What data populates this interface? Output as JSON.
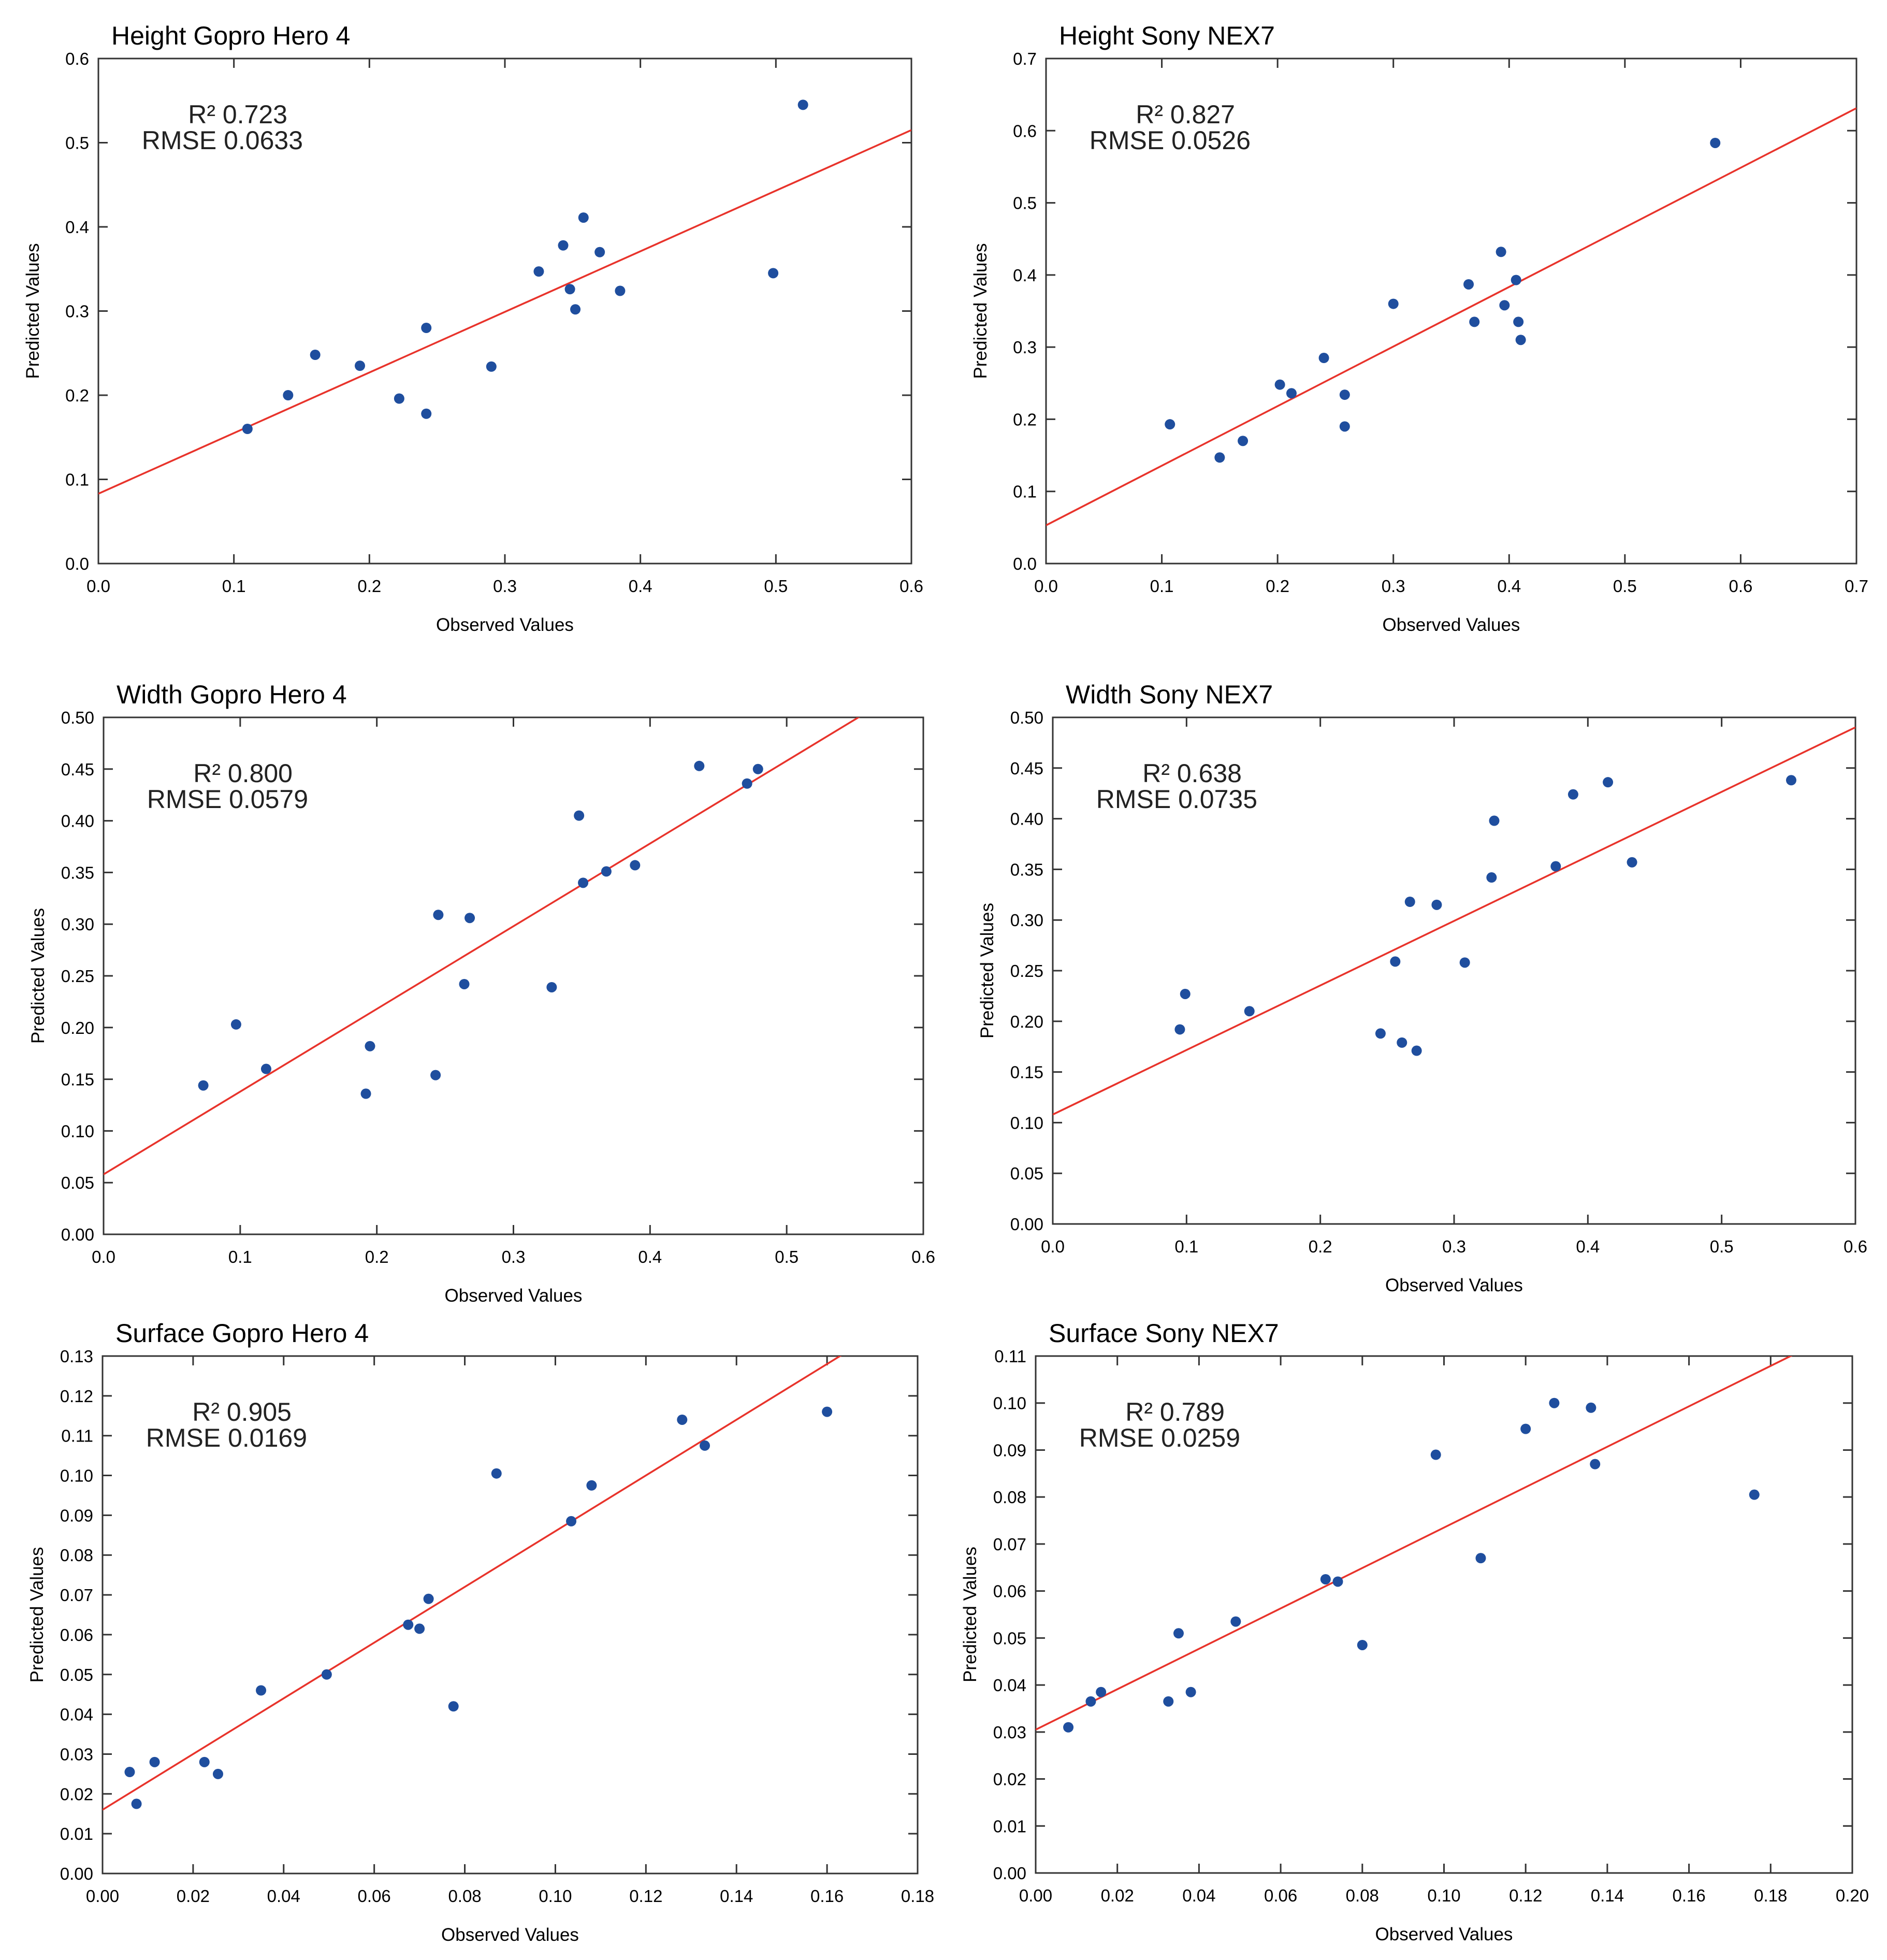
{
  "chart_data": [
    {
      "type": "scatter",
      "title": "Height Gopro Hero 4",
      "xlabel": "Observed Values",
      "ylabel": "Predicted Values",
      "xlim": [
        0,
        0.6
      ],
      "ylim": [
        0,
        0.6
      ],
      "xticks": [
        "0.0",
        "0.1",
        "0.2",
        "0.3",
        "0.4",
        "0.5",
        "0.6"
      ],
      "yticks": [
        "0.0",
        "0.1",
        "0.2",
        "0.3",
        "0.4",
        "0.5",
        "0.6"
      ],
      "stats": {
        "r2_label": "R² 0.723",
        "rmse_label": "RMSE 0.0633"
      },
      "fit_line": {
        "intercept": 0.083,
        "slope": 0.72
      },
      "points": [
        [
          0.11,
          0.16
        ],
        [
          0.14,
          0.2
        ],
        [
          0.16,
          0.248
        ],
        [
          0.193,
          0.235
        ],
        [
          0.222,
          0.196
        ],
        [
          0.242,
          0.28
        ],
        [
          0.242,
          0.178
        ],
        [
          0.29,
          0.234
        ],
        [
          0.325,
          0.347
        ],
        [
          0.343,
          0.378
        ],
        [
          0.348,
          0.326
        ],
        [
          0.352,
          0.302
        ],
        [
          0.358,
          0.411
        ],
        [
          0.37,
          0.37
        ],
        [
          0.385,
          0.324
        ],
        [
          0.498,
          0.345
        ],
        [
          0.52,
          0.545
        ]
      ]
    },
    {
      "type": "scatter",
      "title": "Height Sony NEX7",
      "xlabel": "Observed Values",
      "ylabel": "Predicted Values",
      "xlim": [
        0,
        0.7
      ],
      "ylim": [
        0,
        0.7
      ],
      "xticks": [
        "0.0",
        "0.1",
        "0.2",
        "0.3",
        "0.4",
        "0.5",
        "0.6",
        "0.7"
      ],
      "yticks": [
        "0.0",
        "0.1",
        "0.2",
        "0.3",
        "0.4",
        "0.5",
        "0.6",
        "0.7"
      ],
      "stats": {
        "r2_label": "R² 0.827",
        "rmse_label": "RMSE 0.0526"
      },
      "fit_line": {
        "intercept": 0.053,
        "slope": 0.826
      },
      "points": [
        [
          0.107,
          0.193
        ],
        [
          0.15,
          0.147
        ],
        [
          0.17,
          0.17
        ],
        [
          0.202,
          0.248
        ],
        [
          0.212,
          0.236
        ],
        [
          0.24,
          0.285
        ],
        [
          0.258,
          0.234
        ],
        [
          0.258,
          0.19
        ],
        [
          0.3,
          0.36
        ],
        [
          0.365,
          0.387
        ],
        [
          0.37,
          0.335
        ],
        [
          0.393,
          0.432
        ],
        [
          0.396,
          0.358
        ],
        [
          0.406,
          0.393
        ],
        [
          0.408,
          0.335
        ],
        [
          0.41,
          0.31
        ],
        [
          0.578,
          0.583
        ]
      ]
    },
    {
      "type": "scatter",
      "title": "Width Gopro Hero 4",
      "xlabel": "Observed Values",
      "ylabel": "Predicted Values",
      "xlim": [
        0,
        0.6
      ],
      "ylim": [
        0,
        0.5
      ],
      "xticks": [
        "0.0",
        "0.1",
        "0.2",
        "0.3",
        "0.4",
        "0.5",
        "0.6"
      ],
      "yticks": [
        "0.00",
        "0.05",
        "0.10",
        "0.15",
        "0.20",
        "0.25",
        "0.30",
        "0.35",
        "0.40",
        "0.45",
        "0.50"
      ],
      "stats": {
        "r2_label": "R² 0.800",
        "rmse_label": "RMSE 0.0579"
      },
      "fit_line": {
        "intercept": 0.058,
        "slope": 0.8
      },
      "points": [
        [
          0.073,
          0.144
        ],
        [
          0.097,
          0.203
        ],
        [
          0.119,
          0.16
        ],
        [
          0.192,
          0.136
        ],
        [
          0.195,
          0.182
        ],
        [
          0.243,
          0.154
        ],
        [
          0.245,
          0.309
        ],
        [
          0.264,
          0.242
        ],
        [
          0.268,
          0.306
        ],
        [
          0.328,
          0.239
        ],
        [
          0.348,
          0.405
        ],
        [
          0.351,
          0.34
        ],
        [
          0.368,
          0.351
        ],
        [
          0.389,
          0.357
        ],
        [
          0.436,
          0.453
        ],
        [
          0.471,
          0.436
        ],
        [
          0.479,
          0.45
        ]
      ]
    },
    {
      "type": "scatter",
      "title": "Width Sony NEX7",
      "xlabel": "Observed Values",
      "ylabel": "Predicted Values",
      "xlim": [
        0,
        0.6
      ],
      "ylim": [
        0,
        0.5
      ],
      "xticks": [
        "0.0",
        "0.1",
        "0.2",
        "0.3",
        "0.4",
        "0.5",
        "0.6"
      ],
      "yticks": [
        "0.00",
        "0.05",
        "0.10",
        "0.15",
        "0.20",
        "0.25",
        "0.30",
        "0.35",
        "0.40",
        "0.45",
        "0.50"
      ],
      "stats": {
        "r2_label": "R² 0.638",
        "rmse_label": "RMSE 0.0735"
      },
      "fit_line": {
        "intercept": 0.108,
        "slope": 0.637
      },
      "points": [
        [
          0.095,
          0.192
        ],
        [
          0.099,
          0.227
        ],
        [
          0.147,
          0.21
        ],
        [
          0.245,
          0.188
        ],
        [
          0.256,
          0.259
        ],
        [
          0.261,
          0.179
        ],
        [
          0.267,
          0.318
        ],
        [
          0.272,
          0.171
        ],
        [
          0.287,
          0.315
        ],
        [
          0.308,
          0.258
        ],
        [
          0.328,
          0.342
        ],
        [
          0.33,
          0.398
        ],
        [
          0.376,
          0.353
        ],
        [
          0.389,
          0.424
        ],
        [
          0.415,
          0.436
        ],
        [
          0.433,
          0.357
        ],
        [
          0.552,
          0.438
        ]
      ]
    },
    {
      "type": "scatter",
      "title": "Surface Gopro Hero 4",
      "xlabel": "Observed Values",
      "ylabel": "Predicted Values",
      "xlim": [
        0,
        0.18
      ],
      "ylim": [
        0,
        0.13
      ],
      "xticks": [
        "0.00",
        "0.02",
        "0.04",
        "0.06",
        "0.08",
        "0.10",
        "0.12",
        "0.14",
        "0.16",
        "0.18"
      ],
      "yticks": [
        "0.00",
        "0.01",
        "0.02",
        "0.03",
        "0.04",
        "0.05",
        "0.06",
        "0.07",
        "0.08",
        "0.09",
        "0.10",
        "0.11",
        "0.12",
        "0.13"
      ],
      "stats": {
        "r2_label": "R² 0.905",
        "rmse_label": "RMSE 0.0169"
      },
      "fit_line": {
        "intercept": 0.016,
        "slope": 0.7
      },
      "points": [
        [
          0.006,
          0.0255
        ],
        [
          0.0075,
          0.0175
        ],
        [
          0.0115,
          0.028
        ],
        [
          0.0225,
          0.028
        ],
        [
          0.0255,
          0.025
        ],
        [
          0.035,
          0.046
        ],
        [
          0.0495,
          0.05
        ],
        [
          0.0675,
          0.0625
        ],
        [
          0.07,
          0.0615
        ],
        [
          0.072,
          0.069
        ],
        [
          0.0775,
          0.042
        ],
        [
          0.087,
          0.1005
        ],
        [
          0.1035,
          0.0885
        ],
        [
          0.108,
          0.0975
        ],
        [
          0.128,
          0.114
        ],
        [
          0.133,
          0.1075
        ],
        [
          0.16,
          0.116
        ]
      ]
    },
    {
      "type": "scatter",
      "title": "Surface Sony NEX7",
      "xlabel": "Observed Values",
      "ylabel": "Predicted Values",
      "xlim": [
        0,
        0.2
      ],
      "ylim": [
        0,
        0.11
      ],
      "xticks": [
        "0.00",
        "0.02",
        "0.04",
        "0.06",
        "0.08",
        "0.10",
        "0.12",
        "0.14",
        "0.16",
        "0.18",
        "0.20"
      ],
      "yticks": [
        "0.00",
        "0.01",
        "0.02",
        "0.03",
        "0.04",
        "0.05",
        "0.06",
        "0.07",
        "0.08",
        "0.09",
        "0.10",
        "0.11"
      ],
      "stats": {
        "r2_label": "R² 0.789",
        "rmse_label": "RMSE 0.0259"
      },
      "fit_line": {
        "intercept": 0.0305,
        "slope": 0.43
      },
      "points": [
        [
          0.008,
          0.031
        ],
        [
          0.0135,
          0.0365
        ],
        [
          0.016,
          0.0385
        ],
        [
          0.0325,
          0.0365
        ],
        [
          0.035,
          0.051
        ],
        [
          0.038,
          0.0385
        ],
        [
          0.049,
          0.0535
        ],
        [
          0.071,
          0.0625
        ],
        [
          0.074,
          0.062
        ],
        [
          0.08,
          0.0485
        ],
        [
          0.098,
          0.089
        ],
        [
          0.109,
          0.067
        ],
        [
          0.12,
          0.0945
        ],
        [
          0.127,
          0.1
        ],
        [
          0.136,
          0.099
        ],
        [
          0.137,
          0.087
        ],
        [
          0.176,
          0.0805
        ]
      ]
    }
  ]
}
